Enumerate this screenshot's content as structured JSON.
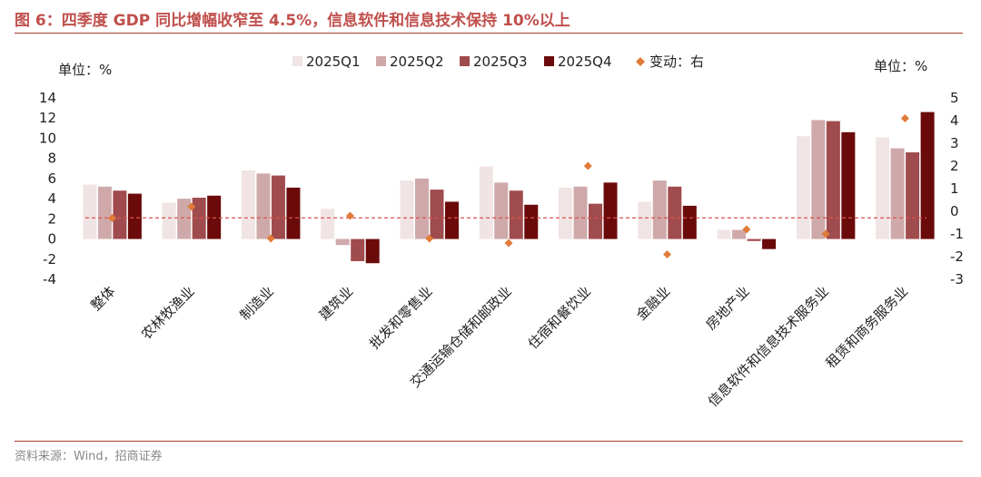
{
  "title": "图 6：四季度 GDP 同比增幅收窄至 4.5%，信息软件和信息技术保持 10%以上",
  "source": "资料来源：Wind，招商证券",
  "chart_data": {
    "type": "bar",
    "left_unit": "单位：%",
    "right_unit": "单位：%",
    "categories": [
      "整体",
      "农林牧渔业",
      "制造业",
      "建筑业",
      "批发和零售业",
      "交通运输仓储和邮政业",
      "住宿和餐饮业",
      "金融业",
      "房地产业",
      "信息软件和信息技术服务业",
      "租赁和商务服务业"
    ],
    "series": [
      {
        "name": "2025Q1",
        "color": "#f1e4e4",
        "values": [
          5.4,
          3.6,
          6.8,
          3.0,
          5.8,
          7.2,
          5.1,
          3.7,
          0.9,
          10.2,
          10.1
        ]
      },
      {
        "name": "2025Q2",
        "color": "#cfa9aa",
        "values": [
          5.2,
          4.0,
          6.5,
          -0.6,
          6.0,
          5.6,
          5.2,
          5.8,
          0.9,
          11.8,
          9.0
        ]
      },
      {
        "name": "2025Q3",
        "color": "#a04b4e",
        "values": [
          4.8,
          4.1,
          6.3,
          -2.2,
          4.9,
          4.8,
          3.5,
          5.2,
          -0.2,
          11.7,
          8.6
        ]
      },
      {
        "name": "2025Q4",
        "color": "#6b0a0a",
        "values": [
          4.5,
          4.3,
          5.1,
          -2.4,
          3.7,
          3.4,
          5.6,
          3.3,
          -1.0,
          10.6,
          12.6
        ]
      }
    ],
    "change_series": {
      "name": "变动：右",
      "color": "#e07b39",
      "values": [
        -0.3,
        0.2,
        -1.2,
        -0.2,
        -1.2,
        -1.4,
        2.0,
        -1.9,
        -0.8,
        -1.0,
        4.1
      ]
    },
    "reference_line": {
      "value": 2.1,
      "color": "#d9534f"
    },
    "y_left": {
      "min": -4,
      "max": 14,
      "ticks": [
        "-4",
        "-2",
        "0",
        "2",
        "4",
        "6",
        "8",
        "10",
        "12",
        "14"
      ]
    },
    "y_right": {
      "min": -3,
      "max": 5,
      "ticks": [
        "-3",
        "-2",
        "-1",
        "0",
        "1",
        "2",
        "3",
        "4",
        "5"
      ]
    },
    "legend_position": "top",
    "grid": false
  }
}
